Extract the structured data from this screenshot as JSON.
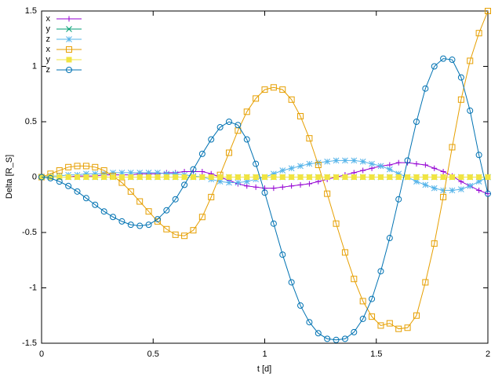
{
  "chart_data": {
    "type": "line",
    "x_label": "t [d]",
    "y_label": "Delta [R_S]",
    "xlim": [
      0,
      2
    ],
    "ylim": [
      -1.5,
      1.5
    ],
    "xticks": [
      0,
      0.5,
      1,
      1.5,
      2
    ],
    "yticks": [
      -1.5,
      -1,
      -0.5,
      0,
      0.5,
      1,
      1.5
    ],
    "legend": "top-left",
    "x": [
      0,
      0.04,
      0.08,
      0.12,
      0.16,
      0.2,
      0.24,
      0.28,
      0.32,
      0.36,
      0.4,
      0.44,
      0.48,
      0.52,
      0.56,
      0.6,
      0.64,
      0.68,
      0.72,
      0.76,
      0.8,
      0.84,
      0.88,
      0.92,
      0.96,
      1,
      1.04,
      1.08,
      1.12,
      1.16,
      1.2,
      1.24,
      1.28,
      1.32,
      1.36,
      1.4,
      1.44,
      1.48,
      1.52,
      1.56,
      1.6,
      1.64,
      1.68,
      1.72,
      1.76,
      1.8,
      1.84,
      1.88,
      1.92,
      1.96,
      2
    ],
    "series": [
      {
        "name": "x",
        "color": "#9400d3",
        "marker": "plus",
        "values": [
          0,
          0,
          0,
          0,
          0.01,
          0.01,
          0.01,
          0.02,
          0.02,
          0.02,
          0.02,
          0.03,
          0.03,
          0.03,
          0.04,
          0.04,
          0.05,
          0.05,
          0.05,
          0.03,
          0,
          -0.03,
          -0.06,
          -0.08,
          -0.09,
          -0.1,
          -0.1,
          -0.09,
          -0.08,
          -0.07,
          -0.06,
          -0.04,
          -0.02,
          0,
          0.02,
          0.04,
          0.06,
          0.08,
          0.1,
          0.11,
          0.13,
          0.13,
          0.12,
          0.11,
          0.08,
          0.05,
          0.01,
          -0.04,
          -0.08,
          -0.12,
          -0.15
        ]
      },
      {
        "name": "y",
        "color": "#009e73",
        "marker": "cross",
        "values": [
          0,
          0,
          0,
          0,
          0,
          0,
          0,
          0,
          0,
          0,
          0,
          0,
          0,
          0,
          0,
          0,
          0,
          0,
          0,
          0,
          0,
          0,
          0,
          0,
          0,
          0,
          0,
          0,
          0,
          0,
          0,
          0,
          0,
          0,
          0,
          0,
          0,
          0,
          0,
          0,
          0,
          0,
          0,
          0,
          0,
          0,
          0,
          0,
          0,
          0,
          0
        ]
      },
      {
        "name": "z",
        "color": "#56b4e9",
        "marker": "star",
        "values": [
          0,
          0.01,
          0.01,
          0.02,
          0.02,
          0.03,
          0.03,
          0.03,
          0.04,
          0.04,
          0.04,
          0.04,
          0.04,
          0.04,
          0.03,
          0.03,
          0.02,
          0.01,
          0,
          -0.02,
          -0.04,
          -0.05,
          -0.05,
          -0.04,
          -0.02,
          0,
          0.03,
          0.06,
          0.08,
          0.1,
          0.12,
          0.13,
          0.14,
          0.15,
          0.15,
          0.15,
          0.14,
          0.12,
          0.1,
          0.07,
          0.03,
          0,
          -0.04,
          -0.07,
          -0.1,
          -0.12,
          -0.12,
          -0.11,
          -0.08,
          -0.04,
          0
        ]
      },
      {
        "name": "x",
        "color": "#e69f00",
        "marker": "square",
        "values": [
          0,
          0.03,
          0.06,
          0.09,
          0.1,
          0.1,
          0.09,
          0.06,
          0.01,
          -0.05,
          -0.13,
          -0.22,
          -0.31,
          -0.4,
          -0.47,
          -0.52,
          -0.53,
          -0.48,
          -0.36,
          -0.18,
          0.02,
          0.22,
          0.42,
          0.59,
          0.71,
          0.79,
          0.81,
          0.79,
          0.7,
          0.55,
          0.35,
          0.11,
          -0.15,
          -0.42,
          -0.68,
          -0.92,
          -1.12,
          -1.26,
          -1.34,
          -1.32,
          -1.37,
          -1.36,
          -1.25,
          -0.95,
          -0.6,
          -0.18,
          0.27,
          0.7,
          1.05,
          1.3,
          1.5
        ]
      },
      {
        "name": "y",
        "color": "#f0e442",
        "marker": "filled-square",
        "values": [
          0,
          0,
          0,
          0,
          0,
          0,
          0,
          0,
          0,
          0,
          0,
          0,
          0,
          0,
          0,
          0,
          0,
          0,
          0,
          0,
          0,
          0,
          0,
          0,
          0,
          0,
          0,
          0,
          0,
          0,
          0,
          0,
          0,
          0,
          0,
          0,
          0,
          0,
          0,
          0,
          0,
          0,
          0,
          0,
          0,
          0,
          0,
          0,
          0,
          0,
          0
        ]
      },
      {
        "name": "z",
        "color": "#0072b2",
        "marker": "circle",
        "values": [
          0,
          -0.01,
          -0.04,
          -0.08,
          -0.13,
          -0.19,
          -0.25,
          -0.31,
          -0.36,
          -0.4,
          -0.43,
          -0.44,
          -0.43,
          -0.38,
          -0.3,
          -0.2,
          -0.07,
          0.07,
          0.21,
          0.34,
          0.45,
          0.5,
          0.47,
          0.34,
          0.12,
          -0.14,
          -0.42,
          -0.7,
          -0.95,
          -1.16,
          -1.31,
          -1.41,
          -1.46,
          -1.47,
          -1.46,
          -1.4,
          -1.28,
          -1.1,
          -0.85,
          -0.55,
          -0.2,
          0.15,
          0.5,
          0.8,
          1,
          1.07,
          1.06,
          0.9,
          0.6,
          0.2,
          -0.15
        ]
      }
    ]
  }
}
